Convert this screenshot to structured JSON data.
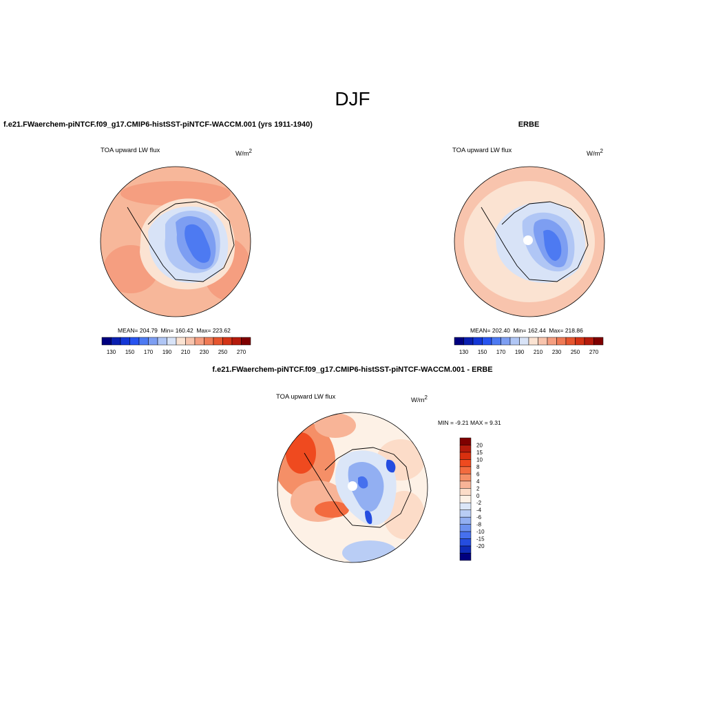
{
  "header": {
    "title": "DJF"
  },
  "panels": {
    "model": {
      "title": "f.e21.FWaerchem-piNTCF.f09_g17.CMIP6-histSST-piNTCF-WACCM.001 (yrs 1911-1940)",
      "variable": "TOA upward LW flux",
      "units_base": "W/m",
      "units_exp": "2",
      "stats": {
        "mean": "204.79",
        "min": "160.42",
        "max": "223.62"
      }
    },
    "obs": {
      "title": "ERBE",
      "variable": "TOA upward LW flux",
      "units_base": "W/m",
      "units_exp": "2",
      "stats": {
        "mean": "202.40",
        "min": "162.44",
        "max": "218.86"
      }
    },
    "diff": {
      "title": "f.e21.FWaerchem-piNTCF.f09_g17.CMIP6-histSST-piNTCF-WACCM.001 - ERBE",
      "variable": "TOA upward LW flux",
      "units_base": "W/m",
      "units_exp": "2",
      "stats": {
        "min": "-9.21",
        "max": "9.31"
      }
    }
  },
  "labels": {
    "mean": "MEAN=",
    "min": "Min=",
    "max": "Max=",
    "MIN": "MIN =",
    "MAX": "MAX ="
  },
  "colorbar_main": {
    "colors": [
      "#00007f",
      "#0a1fb0",
      "#1437d6",
      "#2854f0",
      "#4d7af2",
      "#7d9ef2",
      "#b0c6f5",
      "#d8e3f7",
      "#fbe3d2",
      "#f8c4ad",
      "#f59e80",
      "#ef7a55",
      "#e6562f",
      "#d43416",
      "#b51b0c",
      "#7f0000"
    ],
    "ticks": [
      "130",
      "150",
      "170",
      "190",
      "210",
      "230",
      "250",
      "270"
    ]
  },
  "colorbar_diff": {
    "colors": [
      "#7f0000",
      "#b51b0c",
      "#d8300f",
      "#ef4a1f",
      "#f36b3f",
      "#f58f67",
      "#f8b497",
      "#fcdcc8",
      "#fdf1e6",
      "#dbe6f8",
      "#b9cdf5",
      "#92aff2",
      "#6c91f0",
      "#4670ee",
      "#254de0",
      "#0f2bb8",
      "#00007f"
    ],
    "ticks": [
      "20",
      "15",
      "10",
      "8",
      "6",
      "4",
      "2",
      "0",
      "-2",
      "-4",
      "-6",
      "-8",
      "-10",
      "-15",
      "-20"
    ]
  }
}
